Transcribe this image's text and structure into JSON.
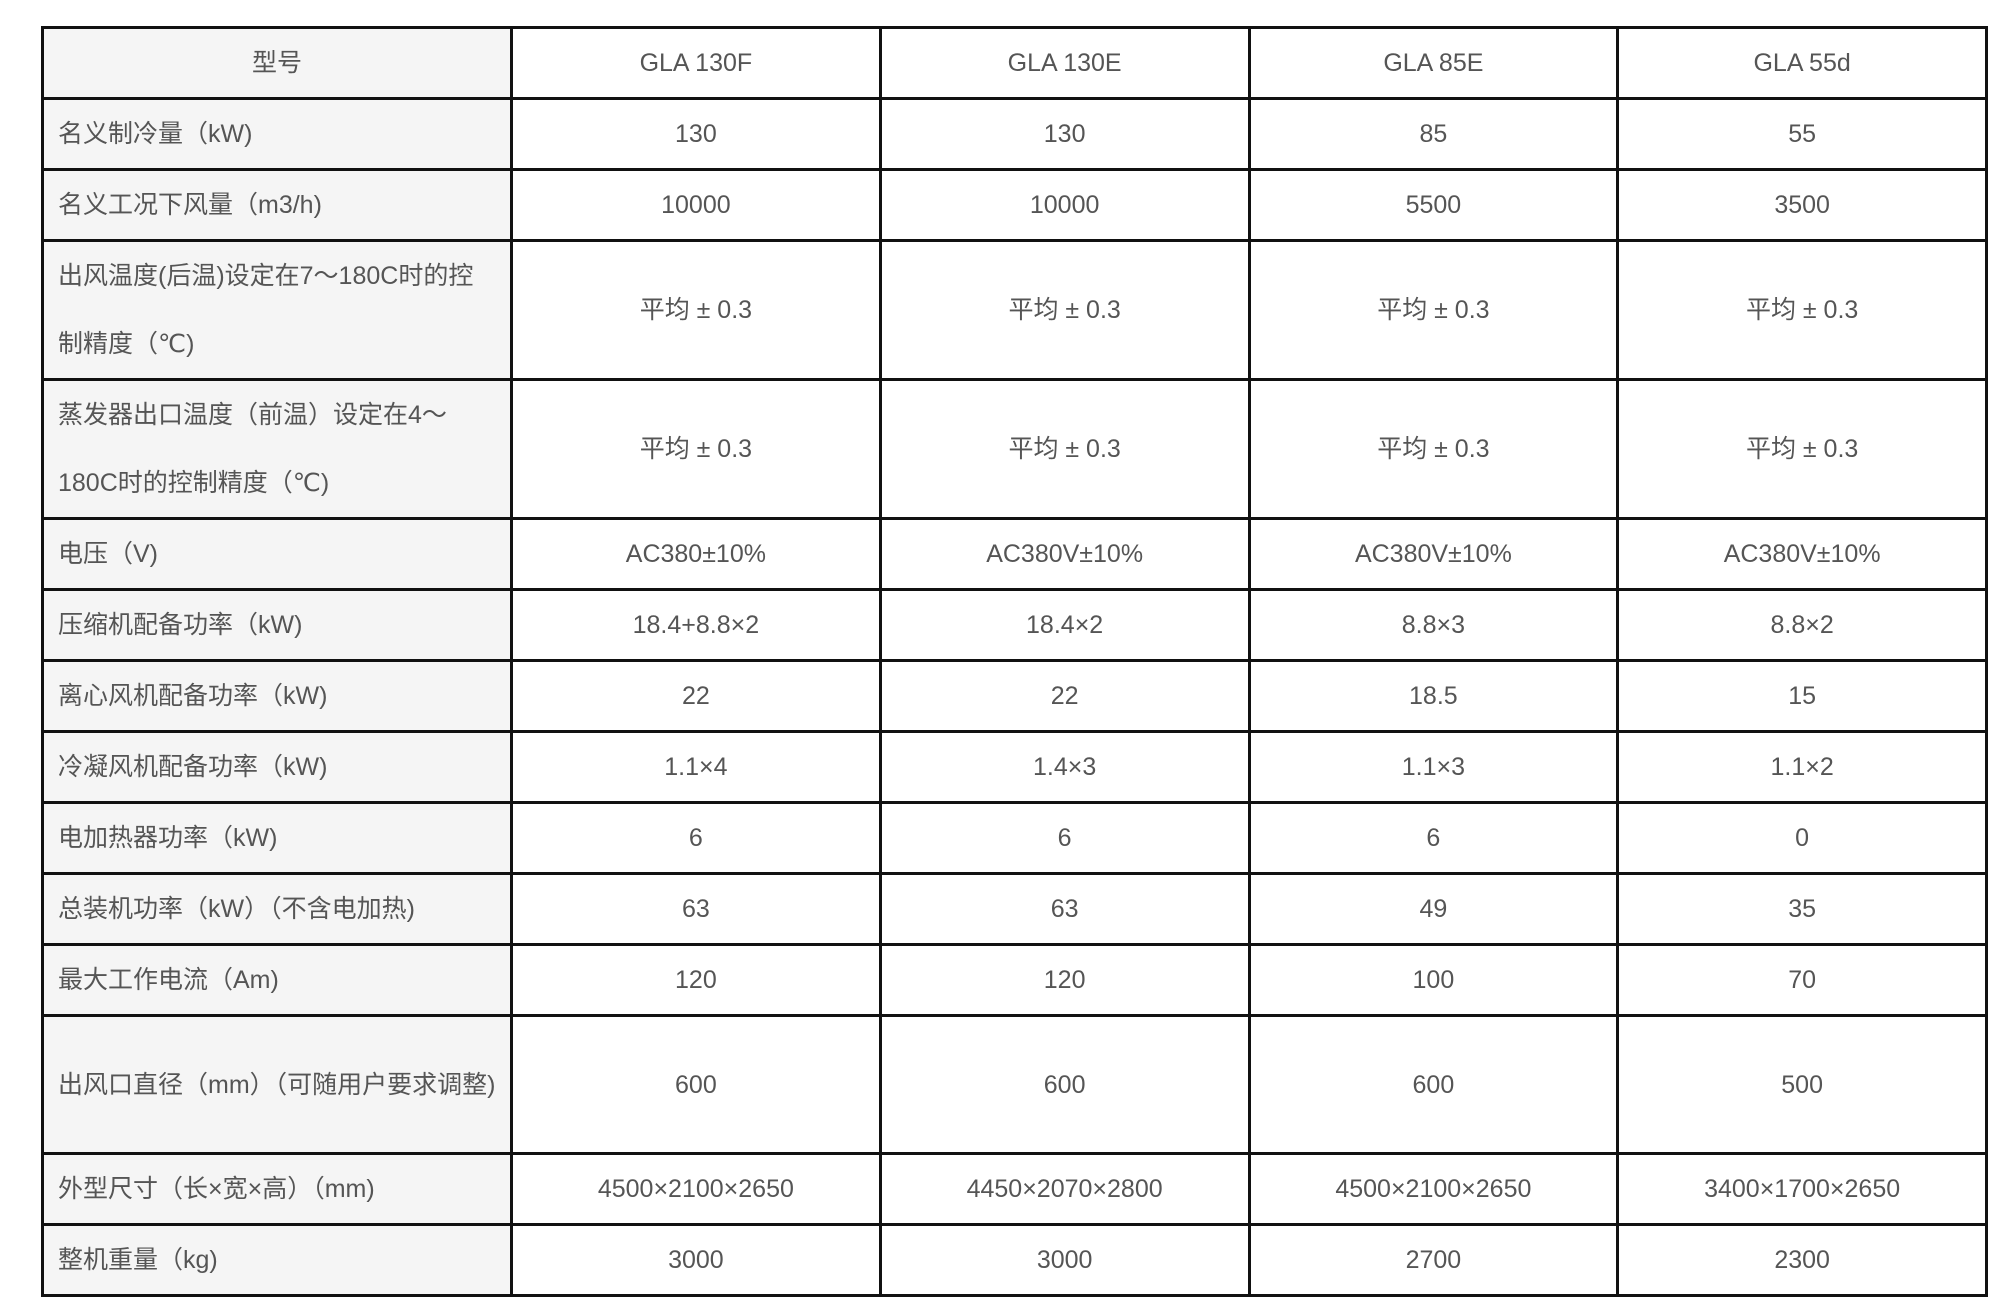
{
  "table": {
    "header": [
      "型号",
      "GLA 130F",
      "GLA  130E",
      "GLA 85E",
      "GLA 55d"
    ],
    "rows": [
      [
        "名义制冷量（kW)",
        "130",
        "130",
        "85",
        "55"
      ],
      [
        "名义工况下风量（m3/h)",
        "10000",
        "10000",
        "5500",
        "3500"
      ],
      [
        "出风温度(后温)设定在7～180C时的控制精度（℃)",
        "平均 ± 0.3",
        "平均 ± 0.3",
        "平均 ± 0.3",
        "平均 ± 0.3"
      ],
      [
        "蒸发器出口温度（前温）设定在4～180C时的控制精度（℃)",
        "平均 ± 0.3",
        "平均 ± 0.3",
        "平均 ± 0.3",
        "平均 ± 0.3"
      ],
      [
        "电压（V)",
        "AC380±10%",
        "AC380V±10%",
        "AC380V±10%",
        "AC380V±10%"
      ],
      [
        "压缩机配备功率（kW)",
        "18.4+8.8×2",
        "18.4×2",
        "8.8×3",
        "8.8×2"
      ],
      [
        "离心风机配备功率（kW)",
        "22",
        "22",
        "18.5",
        "15"
      ],
      [
        "冷凝风机配备功率（kW)",
        "1.1×4",
        "1.4×3",
        "1.1×3",
        "1.1×2"
      ],
      [
        "电加热器功率（kW)",
        "6",
        "6",
        "6",
        "0"
      ],
      [
        "总装机功率（kW）（不含电加热)",
        "63",
        "63",
        "49",
        "35"
      ],
      [
        "最大工作电流（Am)",
        "120",
        "120",
        "100",
        "70"
      ],
      [
        "出风口直径（mm）（可随用户要求调整)",
        "600",
        "600",
        "600",
        "500"
      ],
      [
        "外型尺寸（长×宽×高）（mm)",
        "4500×2100×2650",
        "4450×2070×2800",
        "4500×2100×2650",
        "3400×1700×2650"
      ],
      [
        "整机重量（kg)",
        "3000",
        "3000",
        "2700",
        "2300"
      ]
    ]
  }
}
